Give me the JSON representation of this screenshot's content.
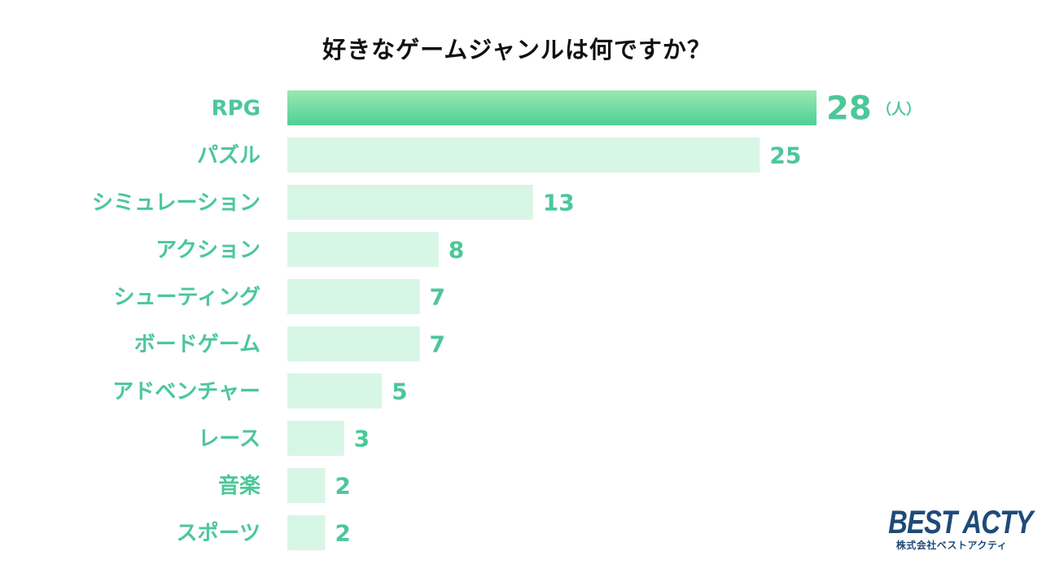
{
  "chart_data": {
    "type": "bar",
    "orientation": "horizontal",
    "title": "好きなゲームジャンルは何ですか？",
    "unit": "（人）",
    "categories": [
      "RPG",
      "パズル",
      "シミュレーション",
      "アクション",
      "シューティング",
      "ボードゲーム",
      "アドベンチャー",
      "レース",
      "音楽",
      "スポーツ"
    ],
    "values": [
      28,
      25,
      13,
      8,
      7,
      7,
      5,
      3,
      2,
      2
    ],
    "highlight_index": 0,
    "xlim": [
      0,
      28
    ],
    "grid": false,
    "legend": "none"
  },
  "colors": {
    "highlight_bar_top": "#9BE8B0",
    "highlight_bar_bottom": "#4FCF97",
    "bar": "#D8F6E6",
    "label": "#4CC79A",
    "title": "#111111",
    "logo": "#1F4A78"
  },
  "logo": {
    "main": "BEST ACTY",
    "sub": "株式会社ベストアクティ"
  }
}
